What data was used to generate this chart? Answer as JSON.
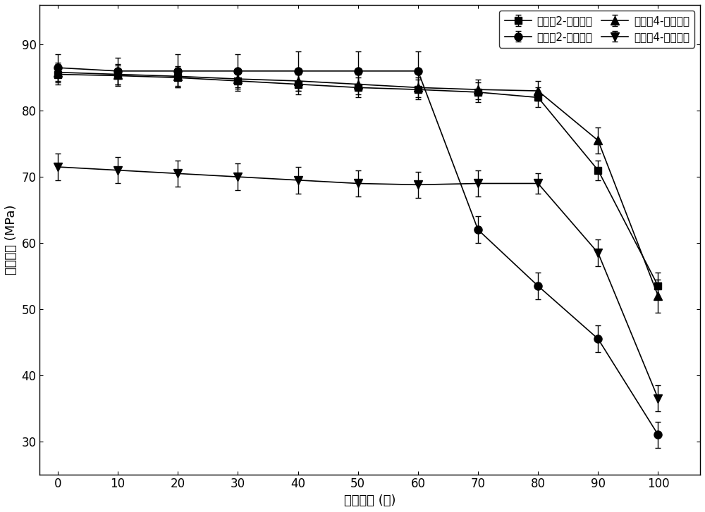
{
  "x": [
    0,
    10,
    20,
    30,
    40,
    50,
    60,
    70,
    80,
    90,
    100
  ],
  "series": [
    {
      "label": "实施䥣2-完整试件",
      "y": [
        85.5,
        85.3,
        85.0,
        84.5,
        84.0,
        83.5,
        83.2,
        82.8,
        82.0,
        71.0,
        53.5
      ],
      "yerr": [
        1.5,
        1.5,
        1.5,
        1.5,
        1.5,
        1.5,
        1.5,
        1.5,
        1.5,
        1.5,
        2.0
      ],
      "marker": "s"
    },
    {
      "label": "实施䥣2-修复试件",
      "y": [
        86.5,
        86.0,
        86.0,
        86.0,
        86.0,
        86.0,
        86.0,
        62.0,
        53.5,
        45.5,
        31.0
      ],
      "yerr": [
        2.0,
        2.0,
        2.5,
        2.5,
        3.0,
        3.0,
        3.0,
        2.0,
        2.0,
        2.0,
        2.0
      ],
      "marker": "o"
    },
    {
      "label": "实施䥣4-完整试件",
      "y": [
        85.8,
        85.5,
        85.2,
        84.8,
        84.5,
        84.0,
        83.5,
        83.2,
        83.0,
        75.5,
        52.0
      ],
      "yerr": [
        1.5,
        1.5,
        1.5,
        1.5,
        1.5,
        1.5,
        1.5,
        1.5,
        1.5,
        2.0,
        2.5
      ],
      "marker": "^"
    },
    {
      "label": "实施䥣4-修复试件",
      "y": [
        71.5,
        71.0,
        70.5,
        70.0,
        69.5,
        69.0,
        68.8,
        69.0,
        69.0,
        58.5,
        36.5
      ],
      "yerr": [
        2.0,
        2.0,
        2.0,
        2.0,
        2.0,
        2.0,
        2.0,
        2.0,
        1.5,
        2.0,
        2.0
      ],
      "marker": "v"
    }
  ],
  "xlabel": "循环次数 (次)",
  "ylabel": "抗压强度 (MPa)",
  "xlim": [
    -3,
    107
  ],
  "ylim": [
    25,
    96
  ],
  "yticks": [
    30,
    40,
    50,
    60,
    70,
    80,
    90
  ],
  "xticks": [
    0,
    10,
    20,
    30,
    40,
    50,
    60,
    70,
    80,
    90,
    100
  ],
  "color": "#000000",
  "figsize": [
    10.0,
    7.27
  ],
  "dpi": 100
}
